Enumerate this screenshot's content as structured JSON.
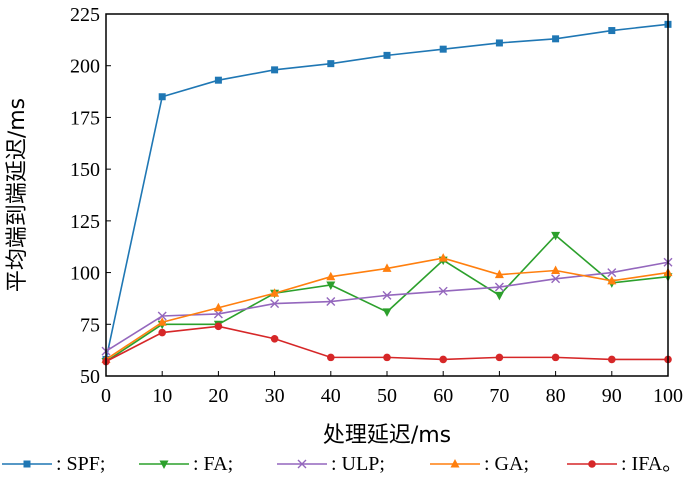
{
  "chart_data": {
    "type": "line",
    "xlabel": "处理延迟/ms",
    "ylabel": "平均端到端延迟/ms",
    "x": [
      0,
      10,
      20,
      30,
      40,
      50,
      60,
      70,
      80,
      90,
      100
    ],
    "xlim": [
      0,
      100
    ],
    "ylim": [
      50,
      225
    ],
    "xticks": [
      0,
      10,
      20,
      30,
      40,
      50,
      60,
      70,
      80,
      90,
      100
    ],
    "yticks": [
      50,
      75,
      100,
      125,
      150,
      175,
      200,
      225
    ],
    "grid": false,
    "legend_position": "bottom",
    "series": [
      {
        "name": "SPF",
        "legend_label": ": SPF;",
        "color": "#1f77b4",
        "marker": "square",
        "values": [
          58,
          185,
          193,
          198,
          201,
          205,
          208,
          211,
          213,
          217,
          220
        ]
      },
      {
        "name": "FA",
        "legend_label": ": FA;",
        "color": "#2ca02c",
        "marker": "triangle-down",
        "values": [
          57,
          75,
          75,
          90,
          94,
          81,
          106,
          89,
          118,
          95,
          98
        ]
      },
      {
        "name": "ULP",
        "legend_label": ": ULP;",
        "color": "#9467bd",
        "marker": "x",
        "values": [
          62,
          79,
          80,
          85,
          86,
          89,
          91,
          93,
          97,
          100,
          105
        ]
      },
      {
        "name": "GA",
        "legend_label": ": GA;",
        "color": "#ff7f0e",
        "marker": "triangle-up",
        "values": [
          58,
          76,
          83,
          90,
          98,
          102,
          107,
          99,
          101,
          96,
          100
        ]
      },
      {
        "name": "IFA",
        "legend_label": ": IFA。",
        "color": "#d62728",
        "marker": "circle",
        "values": [
          57,
          71,
          74,
          68,
          59,
          59,
          58,
          59,
          59,
          58,
          58
        ]
      }
    ]
  }
}
